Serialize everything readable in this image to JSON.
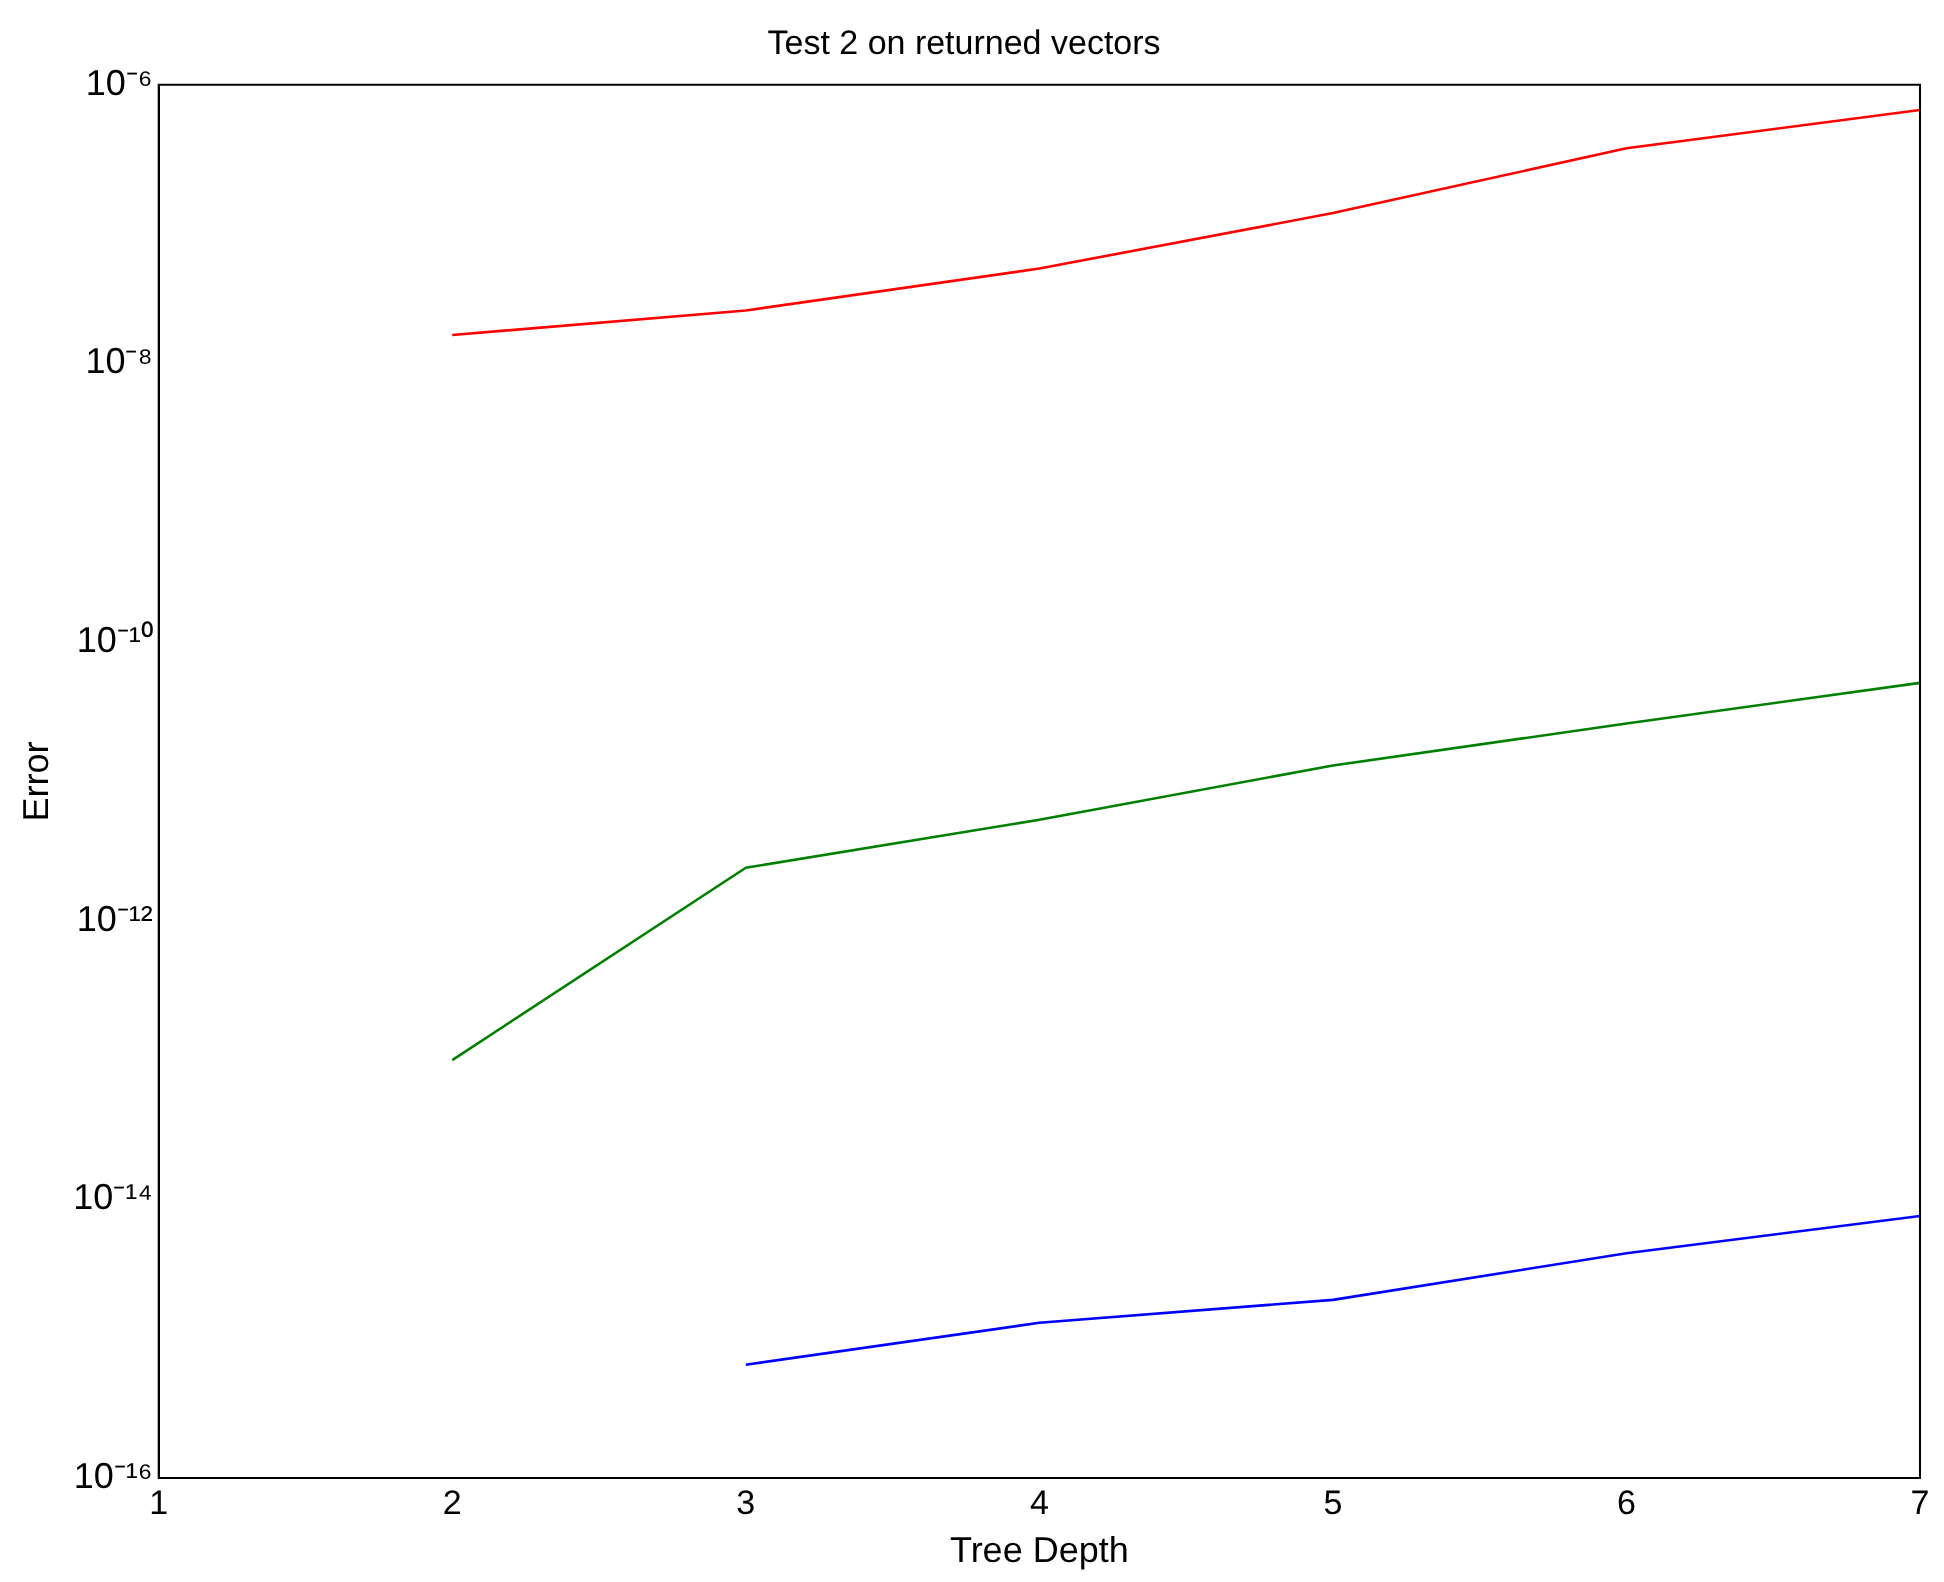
{
  "chart_data": {
    "type": "line",
    "title": "Test 2 on returned vectors",
    "xlabel": "Tree Depth",
    "ylabel": "Error",
    "x": [
      2,
      3,
      4,
      5,
      6,
      7
    ],
    "series": [
      {
        "color": "#ff0000",
        "values": [
          1.6e-08,
          2.4e-08,
          4.8e-08,
          1.2e-07,
          3.5e-07,
          6.6e-07
        ]
      },
      {
        "color": "#008000",
        "values": [
          1e-13,
          2.4e-12,
          5.3e-12,
          1.3e-11,
          2.6e-11,
          5.1e-11
        ]
      },
      {
        "color": "#0000ff",
        "values": [
          null,
          6.5e-16,
          1.3e-15,
          1.9e-15,
          4.1e-15,
          7.6e-15
        ]
      }
    ],
    "xlim": [
      1,
      7
    ],
    "xticks": [
      1,
      2,
      3,
      4,
      5,
      6,
      7
    ],
    "ylim": [
      1e-16,
      1e-06
    ],
    "yticks": [
      {
        "value": 1e-16,
        "label": "10⁻¹⁶"
      },
      {
        "value": 1e-14,
        "label": "10⁻¹⁴"
      },
      {
        "value": 1e-12,
        "label": "10⁻¹²"
      },
      {
        "value": 1e-10,
        "label": "10⁻¹⁰"
      },
      {
        "value": 1e-08,
        "label": "10⁻⁸"
      },
      {
        "value": 1e-06,
        "label": "10⁻⁶"
      }
    ],
    "log": "y"
  }
}
